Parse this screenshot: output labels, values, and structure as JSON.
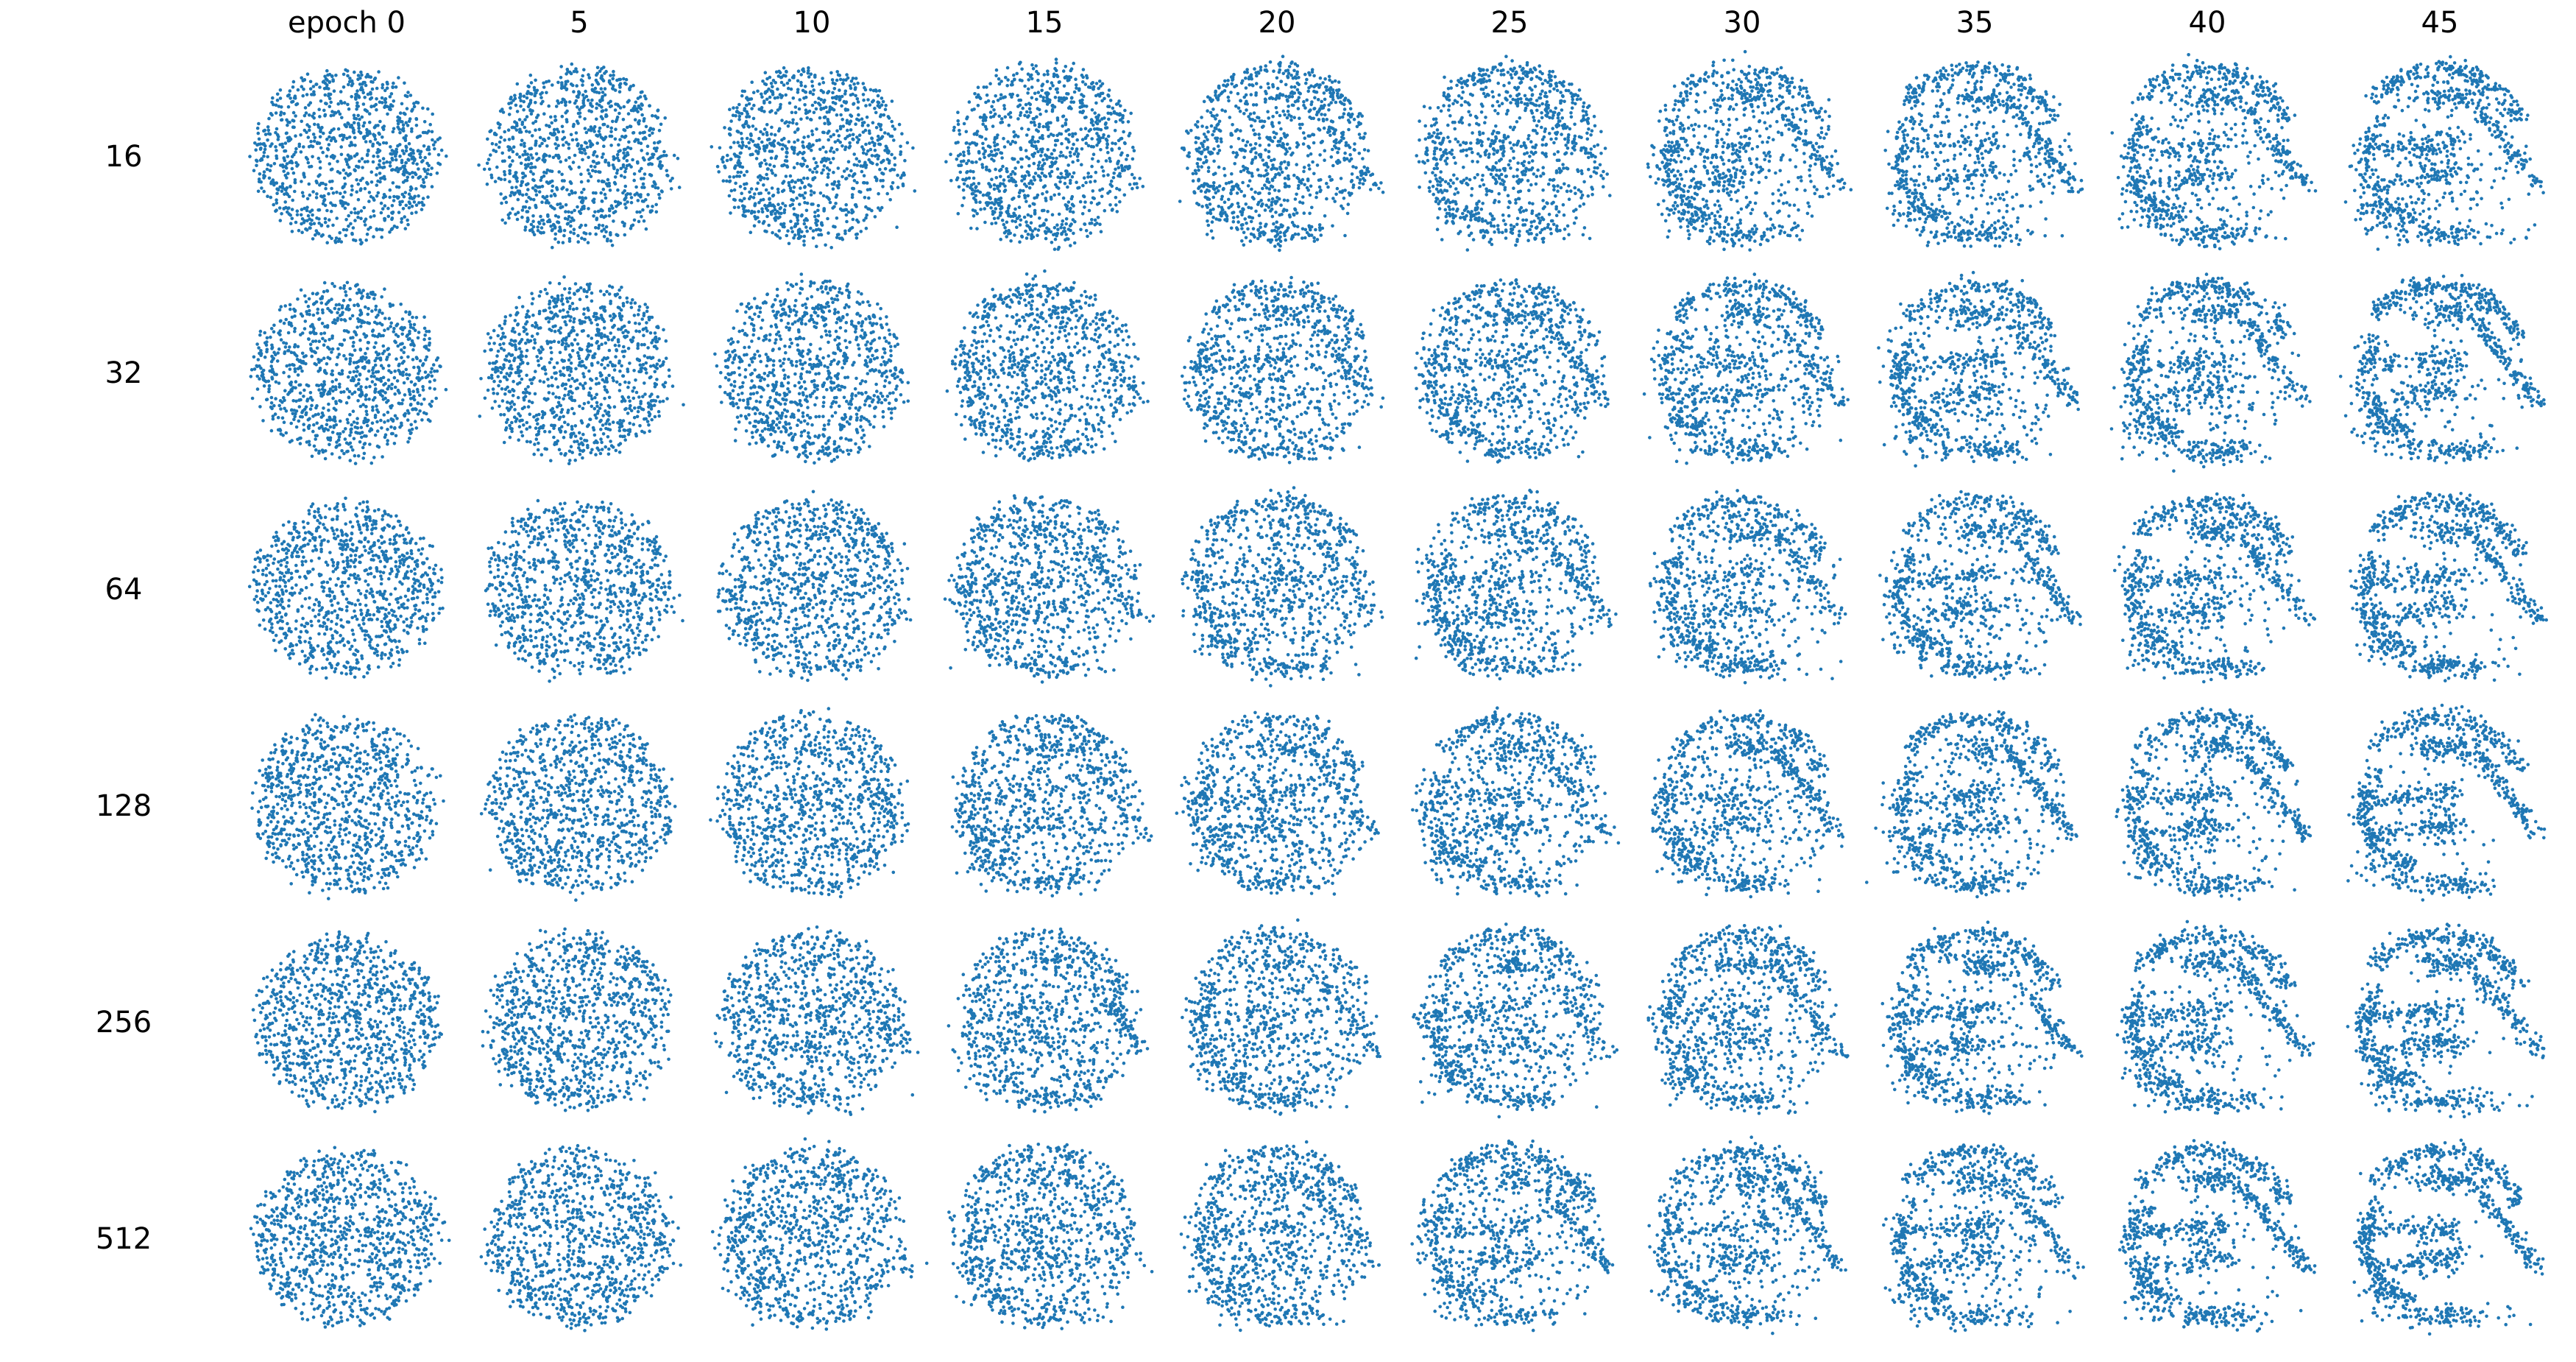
{
  "chart_data": {
    "type": "scatter",
    "title": "",
    "column_header": "epoch",
    "columns": [
      "epoch 0",
      "5",
      "10",
      "15",
      "20",
      "25",
      "30",
      "35",
      "40",
      "45"
    ],
    "epochs": [
      0,
      5,
      10,
      15,
      20,
      25,
      30,
      35,
      40,
      45
    ],
    "rows": [
      "16",
      "32",
      "64",
      "128",
      "256",
      "512"
    ],
    "points_per_panel": 1000,
    "axes_visible": false,
    "grid": false,
    "legend": "none",
    "marker_color": "#1f77b4",
    "marker": "small dot"
  }
}
